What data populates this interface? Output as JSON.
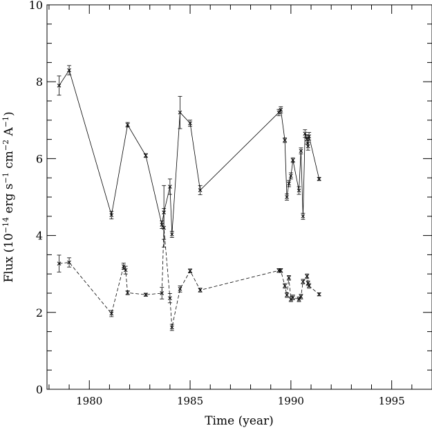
{
  "chart_data": {
    "type": "line",
    "xlabel": "Time (year)",
    "ylabel": {
      "prefix": "Flux (10",
      "exp1": "−14",
      "mid1": " erg s",
      "exp2": "−1",
      "mid2": " cm",
      "exp3": "−2",
      "mid3": " A",
      "exp4": "−1",
      "suffix": ")"
    },
    "xlim": [
      1977.9,
      1997.0
    ],
    "ylim": [
      0,
      10
    ],
    "x_ticks": [
      1980,
      1985,
      1990,
      1995
    ],
    "x_tick_labels": [
      "1980",
      "1985",
      "1990",
      "1995"
    ],
    "y_ticks": [
      0,
      2,
      4,
      6,
      8,
      10
    ],
    "y_tick_labels": [
      "0",
      "2",
      "4",
      "6",
      "8",
      "10"
    ],
    "x_minor_step": 1,
    "y_minor_step": 0.5,
    "grid": false,
    "series": [
      {
        "line_style": "solid",
        "points": [
          {
            "x": 1978.5,
            "y": 7.9,
            "err": 0.25
          },
          {
            "x": 1979.0,
            "y": 8.3,
            "err": 0.12
          },
          {
            "x": 1981.1,
            "y": 4.53,
            "err": 0.1
          },
          {
            "x": 1981.9,
            "y": 6.88,
            "err": 0.06
          },
          {
            "x": 1982.8,
            "y": 6.08,
            "err": 0.05
          },
          {
            "x": 1983.6,
            "y": 4.28,
            "err": 0.1
          },
          {
            "x": 1983.7,
            "y": 4.6,
            "err": 0.7
          },
          {
            "x": 1984.0,
            "y": 5.27,
            "err": 0.2
          },
          {
            "x": 1984.1,
            "y": 4.03,
            "err": 0.08
          },
          {
            "x": 1984.5,
            "y": 7.2,
            "err": 0.42
          },
          {
            "x": 1985.0,
            "y": 6.92,
            "err": 0.08
          },
          {
            "x": 1985.5,
            "y": 5.18,
            "err": 0.12
          },
          {
            "x": 1989.4,
            "y": 7.2,
            "err": 0.08
          },
          {
            "x": 1989.5,
            "y": 7.27,
            "err": 0.08
          },
          {
            "x": 1989.7,
            "y": 6.48,
            "err": 0.06
          },
          {
            "x": 1989.8,
            "y": 5.0,
            "err": 0.08
          },
          {
            "x": 1989.9,
            "y": 5.35,
            "err": 0.08
          },
          {
            "x": 1990.0,
            "y": 5.55,
            "err": 0.08
          },
          {
            "x": 1990.1,
            "y": 5.96,
            "err": 0.06
          },
          {
            "x": 1990.4,
            "y": 5.17,
            "err": 0.1
          },
          {
            "x": 1990.5,
            "y": 6.2,
            "err": 0.08
          },
          {
            "x": 1990.6,
            "y": 4.5,
            "err": 0.08
          },
          {
            "x": 1990.7,
            "y": 6.65,
            "err": 0.1
          },
          {
            "x": 1990.8,
            "y": 6.5,
            "err": 0.12
          },
          {
            "x": 1990.85,
            "y": 6.32,
            "err": 0.1
          },
          {
            "x": 1990.9,
            "y": 6.58,
            "err": 0.1
          },
          {
            "x": 1991.4,
            "y": 5.47,
            "err": 0.04
          }
        ]
      },
      {
        "line_style": "dashed",
        "points": [
          {
            "x": 1978.5,
            "y": 3.27,
            "err": 0.22
          },
          {
            "x": 1979.0,
            "y": 3.3,
            "err": 0.12
          },
          {
            "x": 1981.1,
            "y": 1.97,
            "err": 0.08
          },
          {
            "x": 1981.7,
            "y": 3.2,
            "err": 0.08
          },
          {
            "x": 1981.8,
            "y": 3.1,
            "err": 0.1
          },
          {
            "x": 1981.9,
            "y": 2.51,
            "err": 0.05
          },
          {
            "x": 1982.8,
            "y": 2.46,
            "err": 0.04
          },
          {
            "x": 1983.6,
            "y": 2.5,
            "err": 0.15
          },
          {
            "x": 1983.7,
            "y": 4.2,
            "err": 0.5
          },
          {
            "x": 1984.0,
            "y": 2.37,
            "err": 0.12
          },
          {
            "x": 1984.1,
            "y": 1.61,
            "err": 0.08
          },
          {
            "x": 1984.5,
            "y": 2.61,
            "err": 0.08
          },
          {
            "x": 1985.0,
            "y": 3.08,
            "err": 0.05
          },
          {
            "x": 1985.5,
            "y": 2.58,
            "err": 0.05
          },
          {
            "x": 1989.4,
            "y": 3.09,
            "err": 0.05
          },
          {
            "x": 1989.5,
            "y": 3.09,
            "err": 0.05
          },
          {
            "x": 1989.7,
            "y": 2.69,
            "err": 0.06
          },
          {
            "x": 1989.8,
            "y": 2.45,
            "err": 0.06
          },
          {
            "x": 1989.9,
            "y": 2.9,
            "err": 0.06
          },
          {
            "x": 1990.0,
            "y": 2.34,
            "err": 0.06
          },
          {
            "x": 1990.1,
            "y": 2.39,
            "err": 0.06
          },
          {
            "x": 1990.4,
            "y": 2.34,
            "err": 0.06
          },
          {
            "x": 1990.5,
            "y": 2.41,
            "err": 0.06
          },
          {
            "x": 1990.6,
            "y": 2.8,
            "err": 0.06
          },
          {
            "x": 1990.8,
            "y": 2.94,
            "err": 0.06
          },
          {
            "x": 1990.85,
            "y": 2.76,
            "err": 0.06
          },
          {
            "x": 1990.9,
            "y": 2.69,
            "err": 0.06
          },
          {
            "x": 1991.4,
            "y": 2.47,
            "err": 0.04
          }
        ]
      }
    ]
  }
}
